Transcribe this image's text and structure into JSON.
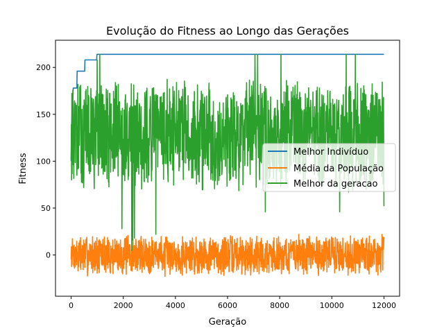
{
  "chart_data": {
    "type": "line",
    "title": "Evolução do Fitness ao Longo das Gerações",
    "xlabel": "Geração",
    "ylabel": "Fitness",
    "xlim": [
      -600,
      12600
    ],
    "ylim": [
      -44,
      229
    ],
    "xticks": [
      0,
      2000,
      4000,
      6000,
      8000,
      10000,
      12000
    ],
    "xtick_labels": [
      "0",
      "2000",
      "4000",
      "6000",
      "8000",
      "10000",
      "12000"
    ],
    "yticks": [
      0,
      50,
      100,
      150,
      200
    ],
    "ytick_labels": [
      "0",
      "50",
      "100",
      "150",
      "200"
    ],
    "grid": false,
    "legend_position": "center-right",
    "series": [
      {
        "name": "Melhor Indivíduo",
        "color": "#1f77b4",
        "points": [
          [
            0,
            100
          ],
          [
            20,
            142
          ],
          [
            80,
            178
          ],
          [
            220,
            178
          ],
          [
            230,
            196
          ],
          [
            520,
            196
          ],
          [
            530,
            208
          ],
          [
            980,
            208
          ],
          [
            990,
            214
          ],
          [
            12000,
            214
          ]
        ]
      },
      {
        "name": "Média da População",
        "color": "#ff7f0e",
        "band": {
          "x_start": 0,
          "x_end": 12000,
          "count": 1300,
          "center": 0,
          "amplitude": 18,
          "min": -31,
          "max": 26,
          "seed": 7
        }
      },
      {
        "name": "Melhor da geracao",
        "color": "#2ca02c",
        "band": {
          "x_start": 0,
          "x_end": 12000,
          "count": 1300,
          "center": 128,
          "amplitude": 48,
          "min": 40,
          "max": 214,
          "seed": 13
        },
        "spikes": [
          [
            480,
            72
          ],
          [
            1000,
            208
          ],
          [
            1100,
            214
          ],
          [
            1950,
            28
          ],
          [
            2330,
            5
          ],
          [
            2360,
            16
          ],
          [
            2430,
            18
          ],
          [
            3250,
            22
          ],
          [
            7050,
            214
          ],
          [
            7150,
            214
          ],
          [
            7450,
            46
          ],
          [
            8050,
            214
          ],
          [
            10300,
            46
          ],
          [
            10550,
            214
          ],
          [
            10900,
            214
          ],
          [
            12000,
            52
          ]
        ]
      }
    ]
  }
}
